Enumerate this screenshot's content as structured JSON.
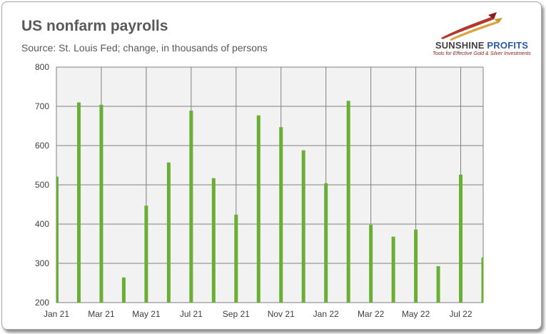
{
  "title": "US nonfarm payrolls",
  "subtitle": "Source: St. Louis Fed; change, in thousands of persons",
  "logo": {
    "name_part1": "SUNSHINE",
    "name_part2": "PROFITS",
    "tagline": "Tools for Effective Gold & Silver Investments"
  },
  "colors": {
    "bar": "#6aae35",
    "plot_background": "#f2f2f2",
    "grid": "#808080",
    "text": "#595959"
  },
  "chart_data": {
    "type": "bar",
    "title": "US nonfarm payrolls",
    "subtitle": "Source: St. Louis Fed; change, in thousands of persons",
    "xlabel": "",
    "ylabel": "",
    "ylim": [
      200,
      800
    ],
    "yticks": [
      200,
      300,
      400,
      500,
      600,
      700,
      800
    ],
    "grid": true,
    "legend": "none",
    "categories": [
      "Jan 21",
      "Feb 21",
      "Mar 21",
      "Apr 21",
      "May 21",
      "Jun 21",
      "Jul 21",
      "Aug 21",
      "Sep 21",
      "Oct 21",
      "Nov 21",
      "Dec 21",
      "Jan 22",
      "Feb 22",
      "Mar 22",
      "Apr 22",
      "May 22",
      "Jun 22",
      "Jul 22",
      "Aug 22"
    ],
    "x_tick_labels": [
      "Jan 21",
      "Mar 21",
      "May 21",
      "Jul 21",
      "Sep 21",
      "Nov 21",
      "Jan 22",
      "Mar 22",
      "May 22",
      "Jul 22"
    ],
    "values": [
      521,
      710,
      704,
      264,
      447,
      557,
      689,
      517,
      424,
      677,
      647,
      588,
      504,
      714,
      398,
      368,
      386,
      293,
      526,
      315
    ]
  }
}
